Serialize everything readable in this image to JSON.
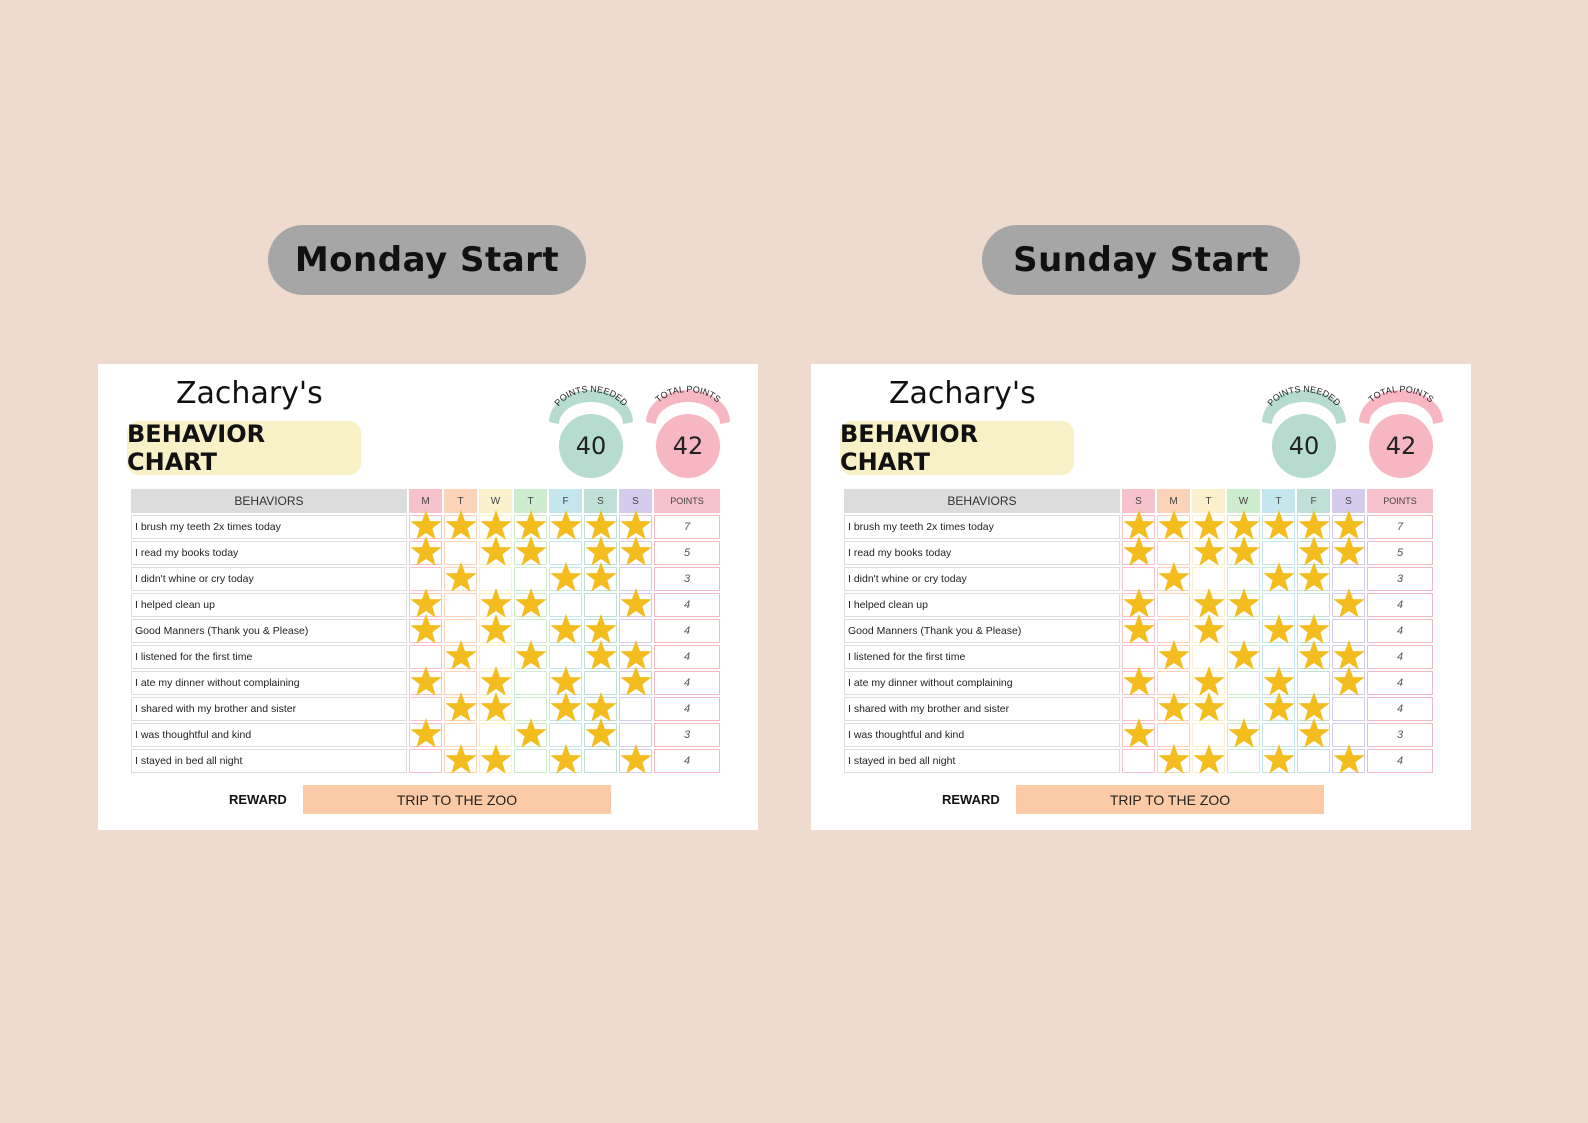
{
  "versions": [
    {
      "label": "Monday Start",
      "name": "Zachary's",
      "title": "BEHAVIOR CHART",
      "points_needed_label": "POINTS NEEDED",
      "points_needed": "40",
      "total_points_label": "TOTAL POINTS",
      "total_points": "42",
      "behaviors_header": "BEHAVIORS",
      "points_header": "POINTS",
      "days": [
        "M",
        "T",
        "W",
        "T",
        "F",
        "S",
        "S"
      ],
      "reward_label": "REWARD",
      "reward": "TRIP TO THE ZOO"
    },
    {
      "label": "Sunday Start",
      "name": "Zachary's",
      "title": "BEHAVIOR CHART",
      "points_needed_label": "POINTS NEEDED",
      "points_needed": "40",
      "total_points_label": "TOTAL POINTS",
      "total_points": "42",
      "behaviors_header": "BEHAVIORS",
      "points_header": "POINTS",
      "days": [
        "S",
        "M",
        "T",
        "W",
        "T",
        "F",
        "S"
      ],
      "reward_label": "REWARD",
      "reward": "TRIP TO THE ZOO"
    }
  ],
  "day_colors": [
    "#f6c2cc",
    "#fbd3b8",
    "#faf0cc",
    "#cdeccd",
    "#c6e6ee",
    "#bfe0d6",
    "#d5cbec"
  ],
  "points_needed_color": "#b5dccf",
  "total_points_color": "#f6b7c3",
  "star_color": "#f3bd1f",
  "rows": [
    {
      "behavior": "I brush my teeth 2x times today",
      "stars": [
        1,
        1,
        1,
        1,
        1,
        1,
        1
      ],
      "points": "7"
    },
    {
      "behavior": "I read my books today",
      "stars": [
        1,
        0,
        1,
        1,
        0,
        1,
        1
      ],
      "points": "5"
    },
    {
      "behavior": "I didn't whine or cry today",
      "stars": [
        0,
        1,
        0,
        0,
        1,
        1,
        0
      ],
      "points": "3"
    },
    {
      "behavior": "I helped clean up",
      "stars": [
        1,
        0,
        1,
        1,
        0,
        0,
        1
      ],
      "points": "4"
    },
    {
      "behavior": "Good Manners (Thank you & Please)",
      "stars": [
        1,
        0,
        1,
        0,
        1,
        1,
        0
      ],
      "points": "4"
    },
    {
      "behavior": "I listened for the first time",
      "stars": [
        0,
        1,
        0,
        1,
        0,
        1,
        1
      ],
      "points": "4"
    },
    {
      "behavior": "I ate my dinner without complaining",
      "stars": [
        1,
        0,
        1,
        0,
        1,
        0,
        1
      ],
      "points": "4"
    },
    {
      "behavior": "I shared with my brother and sister",
      "stars": [
        0,
        1,
        1,
        0,
        1,
        1,
        0
      ],
      "points": "4"
    },
    {
      "behavior": "I was thoughtful and kind",
      "stars": [
        1,
        0,
        0,
        1,
        0,
        1,
        0
      ],
      "points": "3"
    },
    {
      "behavior": "I stayed in bed all night",
      "stars": [
        0,
        1,
        1,
        0,
        1,
        0,
        1
      ],
      "points": "4"
    }
  ]
}
